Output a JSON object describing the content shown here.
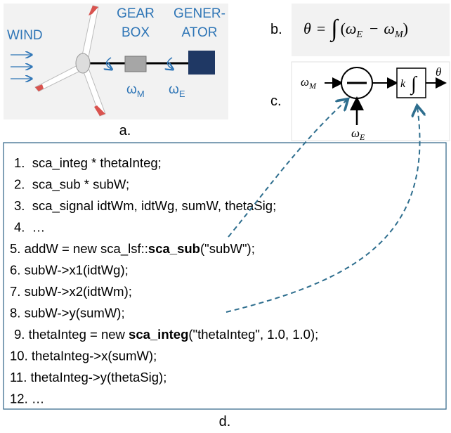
{
  "panel_a": {
    "label": "a.",
    "wind": "WIND",
    "gearbox": [
      "GEAR",
      "BOX"
    ],
    "generator": [
      "GENER-",
      "ATOR"
    ],
    "omega_m": {
      "symbol": "ω",
      "sub": "M"
    },
    "omega_e": {
      "symbol": "ω",
      "sub": "E"
    }
  },
  "panel_b": {
    "label": "b.",
    "equation": [
      "θ",
      "=",
      "∫",
      "(",
      "ω",
      "E",
      "−",
      "ω",
      "M",
      ")"
    ]
  },
  "panel_c": {
    "label": "c.",
    "input_top": {
      "symbol": "ω",
      "sub": "M"
    },
    "input_bottom": {
      "symbol": "ω",
      "sub": "E"
    },
    "output": "θ",
    "gain": "k",
    "integral": "∫"
  },
  "panel_d": {
    "label": "d.",
    "lines": [
      [
        "1.  sca_integ * thetaInteg;"
      ],
      [
        "2.  sca_sub * subW;"
      ],
      [
        "3.  sca_signal idtWm, idtWg, sumW, thetaSig;"
      ],
      [
        "4.  …"
      ],
      [
        "5. addW = new sca_lsf::",
        "sca_sub",
        "(\"subW\");"
      ],
      [
        "6. subW->x1(idtWg);"
      ],
      [
        "7. subW->x2(idtWm);"
      ],
      [
        "8. subW->y(sumW);"
      ],
      [
        "9. thetaInteg = new ",
        "sca_integ",
        "(\"thetaInteg\", 1.0, 1.0);"
      ],
      [
        "10. thetaInteg->x(sumW);"
      ],
      [
        "11. thetaInteg->y(thetaSig);"
      ],
      [
        "12. …"
      ]
    ]
  }
}
